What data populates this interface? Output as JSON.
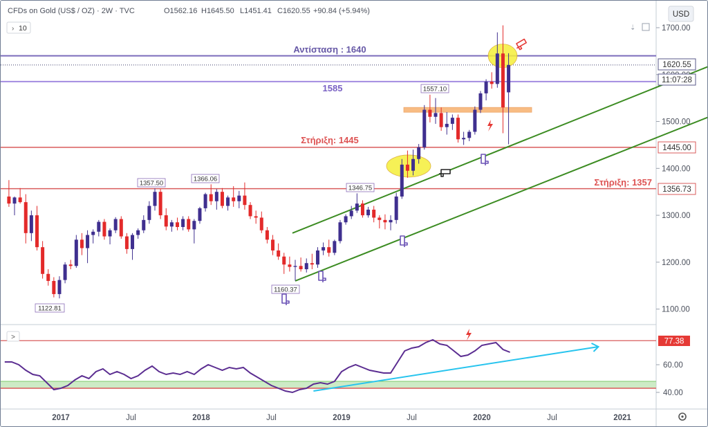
{
  "header": {
    "symbol": "CFDs on Gold (US$ / OZ) · 2W · TVC",
    "ohlc_open": "O1562.16",
    "ohlc_high": "H1645.50",
    "ohlc_low": "L1451.41",
    "ohlc_close": "C1620.55",
    "change": "+90.84 (+5.94%)",
    "interval_button": "10",
    "currency": "USD",
    "indicator_toggle": ">"
  },
  "colors": {
    "up": "#3f2f8f",
    "down": "#e32a2a",
    "channel": "#3c8c22",
    "resistance": "#7b6bbb",
    "support": "#d95b5b",
    "rsi_line": "#5b2d91",
    "rsi_trend": "#27c4ee",
    "highlight": "#f5ef39",
    "zone": "#f6a65a"
  },
  "annotations": {
    "resistance_1640": "Αντίσταση : 1640",
    "level_1585": "1585",
    "support_1445": "Στήριξη: 1445",
    "support_1357": "Στήριξη: 1357",
    "low_label": "1122.81",
    "high_label_2017": "1357.50",
    "high_label_2018": "1366.06",
    "low_label_2018": "1160.37",
    "high_label_2019a": "1346.75",
    "high_label_2019b": "1557.10"
  },
  "price_badges": {
    "last": "1620.55",
    "countdown": "11:07:28",
    "support_1445": "1445.00",
    "support_1357": "1356.73",
    "rsi_level": "77.38"
  },
  "chart_data": {
    "type": "candlestick",
    "title": "CFDs on Gold (US$ / OZ) · 2W · TVC",
    "y_axis": {
      "ticks": [
        1100,
        1200,
        1300,
        1400,
        1500,
        1600,
        1700
      ],
      "tick_labels": [
        "1100.00",
        "1200.00",
        "1300.00",
        "1400.00",
        "1500.00",
        "1600.00",
        "1700.00"
      ],
      "range": [
        1035,
        1780
      ]
    },
    "x_axis": {
      "tick_labels": [
        "2017",
        "Jul",
        "2018",
        "Jul",
        "2019",
        "Jul",
        "2020",
        "Jul",
        "2021"
      ],
      "tick_dates": [
        2017.0,
        2017.5,
        2018.0,
        2018.5,
        2019.0,
        2019.5,
        2020.0,
        2020.5,
        2021.0
      ],
      "range": [
        2016.63,
        2021.5
      ]
    },
    "candles": [
      {
        "t": 2016.63,
        "o": 1340,
        "h": 1375,
        "l": 1318,
        "c": 1325
      },
      {
        "t": 2016.67,
        "o": 1325,
        "h": 1340,
        "l": 1300,
        "c": 1338
      },
      {
        "t": 2016.71,
        "o": 1338,
        "h": 1358,
        "l": 1325,
        "c": 1328
      },
      {
        "t": 2016.75,
        "o": 1328,
        "h": 1345,
        "l": 1240,
        "c": 1262
      },
      {
        "t": 2016.79,
        "o": 1262,
        "h": 1310,
        "l": 1245,
        "c": 1300
      },
      {
        "t": 2016.83,
        "o": 1300,
        "h": 1320,
        "l": 1225,
        "c": 1232
      },
      {
        "t": 2016.87,
        "o": 1232,
        "h": 1245,
        "l": 1165,
        "c": 1175
      },
      {
        "t": 2016.91,
        "o": 1175,
        "h": 1185,
        "l": 1150,
        "c": 1160
      },
      {
        "t": 2016.95,
        "o": 1160,
        "h": 1168,
        "l": 1125,
        "c": 1132
      },
      {
        "t": 2016.99,
        "o": 1132,
        "h": 1170,
        "l": 1122.81,
        "c": 1162
      },
      {
        "t": 2017.03,
        "o": 1162,
        "h": 1200,
        "l": 1155,
        "c": 1195
      },
      {
        "t": 2017.07,
        "o": 1195,
        "h": 1205,
        "l": 1185,
        "c": 1192
      },
      {
        "t": 2017.11,
        "o": 1192,
        "h": 1258,
        "l": 1188,
        "c": 1248
      },
      {
        "t": 2017.15,
        "o": 1248,
        "h": 1262,
        "l": 1215,
        "c": 1230
      },
      {
        "t": 2017.19,
        "o": 1230,
        "h": 1268,
        "l": 1198,
        "c": 1258
      },
      {
        "t": 2017.23,
        "o": 1258,
        "h": 1270,
        "l": 1240,
        "c": 1265
      },
      {
        "t": 2017.27,
        "o": 1265,
        "h": 1290,
        "l": 1255,
        "c": 1286
      },
      {
        "t": 2017.31,
        "o": 1286,
        "h": 1292,
        "l": 1248,
        "c": 1255
      },
      {
        "t": 2017.35,
        "o": 1255,
        "h": 1272,
        "l": 1238,
        "c": 1268
      },
      {
        "t": 2017.39,
        "o": 1268,
        "h": 1296,
        "l": 1262,
        "c": 1292
      },
      {
        "t": 2017.43,
        "o": 1292,
        "h": 1298,
        "l": 1250,
        "c": 1255
      },
      {
        "t": 2017.47,
        "o": 1255,
        "h": 1262,
        "l": 1218,
        "c": 1228
      },
      {
        "t": 2017.51,
        "o": 1228,
        "h": 1262,
        "l": 1205,
        "c": 1258
      },
      {
        "t": 2017.55,
        "o": 1258,
        "h": 1272,
        "l": 1250,
        "c": 1268
      },
      {
        "t": 2017.59,
        "o": 1268,
        "h": 1300,
        "l": 1262,
        "c": 1290
      },
      {
        "t": 2017.63,
        "o": 1290,
        "h": 1330,
        "l": 1282,
        "c": 1320
      },
      {
        "t": 2017.67,
        "o": 1320,
        "h": 1357.5,
        "l": 1310,
        "c": 1350
      },
      {
        "t": 2017.71,
        "o": 1350,
        "h": 1356,
        "l": 1292,
        "c": 1300
      },
      {
        "t": 2017.75,
        "o": 1300,
        "h": 1315,
        "l": 1268,
        "c": 1276
      },
      {
        "t": 2017.79,
        "o": 1276,
        "h": 1290,
        "l": 1265,
        "c": 1285
      },
      {
        "t": 2017.83,
        "o": 1285,
        "h": 1295,
        "l": 1268,
        "c": 1275
      },
      {
        "t": 2017.87,
        "o": 1275,
        "h": 1298,
        "l": 1268,
        "c": 1292
      },
      {
        "t": 2017.91,
        "o": 1292,
        "h": 1298,
        "l": 1265,
        "c": 1270
      },
      {
        "t": 2017.95,
        "o": 1270,
        "h": 1292,
        "l": 1240,
        "c": 1288
      },
      {
        "t": 2017.99,
        "o": 1288,
        "h": 1318,
        "l": 1282,
        "c": 1315
      },
      {
        "t": 2018.03,
        "o": 1315,
        "h": 1348,
        "l": 1308,
        "c": 1345
      },
      {
        "t": 2018.07,
        "o": 1345,
        "h": 1366.06,
        "l": 1322,
        "c": 1330
      },
      {
        "t": 2018.11,
        "o": 1330,
        "h": 1356,
        "l": 1312,
        "c": 1350
      },
      {
        "t": 2018.15,
        "o": 1350,
        "h": 1358,
        "l": 1315,
        "c": 1320
      },
      {
        "t": 2018.19,
        "o": 1320,
        "h": 1342,
        "l": 1310,
        "c": 1338
      },
      {
        "t": 2018.23,
        "o": 1338,
        "h": 1362,
        "l": 1318,
        "c": 1330
      },
      {
        "t": 2018.27,
        "o": 1330,
        "h": 1352,
        "l": 1315,
        "c": 1342
      },
      {
        "t": 2018.31,
        "o": 1342,
        "h": 1370,
        "l": 1312,
        "c": 1322
      },
      {
        "t": 2018.35,
        "o": 1322,
        "h": 1328,
        "l": 1292,
        "c": 1298
      },
      {
        "t": 2018.39,
        "o": 1298,
        "h": 1310,
        "l": 1282,
        "c": 1295
      },
      {
        "t": 2018.43,
        "o": 1295,
        "h": 1308,
        "l": 1262,
        "c": 1268
      },
      {
        "t": 2018.47,
        "o": 1268,
        "h": 1275,
        "l": 1240,
        "c": 1248
      },
      {
        "t": 2018.51,
        "o": 1248,
        "h": 1258,
        "l": 1215,
        "c": 1225
      },
      {
        "t": 2018.55,
        "o": 1225,
        "h": 1240,
        "l": 1205,
        "c": 1212
      },
      {
        "t": 2018.59,
        "o": 1212,
        "h": 1220,
        "l": 1175,
        "c": 1195
      },
      {
        "t": 2018.63,
        "o": 1195,
        "h": 1212,
        "l": 1180,
        "c": 1190
      },
      {
        "t": 2018.67,
        "o": 1190,
        "h": 1205,
        "l": 1160.37,
        "c": 1192
      },
      {
        "t": 2018.71,
        "o": 1192,
        "h": 1210,
        "l": 1180,
        "c": 1185
      },
      {
        "t": 2018.75,
        "o": 1185,
        "h": 1208,
        "l": 1178,
        "c": 1198
      },
      {
        "t": 2018.79,
        "o": 1198,
        "h": 1218,
        "l": 1185,
        "c": 1195
      },
      {
        "t": 2018.83,
        "o": 1195,
        "h": 1232,
        "l": 1188,
        "c": 1225
      },
      {
        "t": 2018.87,
        "o": 1225,
        "h": 1242,
        "l": 1215,
        "c": 1232
      },
      {
        "t": 2018.91,
        "o": 1232,
        "h": 1248,
        "l": 1212,
        "c": 1220
      },
      {
        "t": 2018.95,
        "o": 1220,
        "h": 1248,
        "l": 1215,
        "c": 1245
      },
      {
        "t": 2018.99,
        "o": 1245,
        "h": 1290,
        "l": 1240,
        "c": 1285
      },
      {
        "t": 2019.03,
        "o": 1285,
        "h": 1302,
        "l": 1280,
        "c": 1298
      },
      {
        "t": 2019.07,
        "o": 1298,
        "h": 1320,
        "l": 1292,
        "c": 1310
      },
      {
        "t": 2019.11,
        "o": 1310,
        "h": 1346.75,
        "l": 1305,
        "c": 1325
      },
      {
        "t": 2019.15,
        "o": 1325,
        "h": 1332,
        "l": 1295,
        "c": 1300
      },
      {
        "t": 2019.19,
        "o": 1300,
        "h": 1318,
        "l": 1295,
        "c": 1312
      },
      {
        "t": 2019.23,
        "o": 1312,
        "h": 1320,
        "l": 1285,
        "c": 1295
      },
      {
        "t": 2019.27,
        "o": 1295,
        "h": 1300,
        "l": 1272,
        "c": 1290
      },
      {
        "t": 2019.31,
        "o": 1290,
        "h": 1302,
        "l": 1270,
        "c": 1285
      },
      {
        "t": 2019.35,
        "o": 1285,
        "h": 1300,
        "l": 1268,
        "c": 1290
      },
      {
        "t": 2019.39,
        "o": 1290,
        "h": 1348,
        "l": 1282,
        "c": 1340
      },
      {
        "t": 2019.43,
        "o": 1340,
        "h": 1420,
        "l": 1335,
        "c": 1408
      },
      {
        "t": 2019.47,
        "o": 1408,
        "h": 1438,
        "l": 1380,
        "c": 1395
      },
      {
        "t": 2019.51,
        "o": 1395,
        "h": 1440,
        "l": 1385,
        "c": 1420
      },
      {
        "t": 2019.55,
        "o": 1420,
        "h": 1452,
        "l": 1410,
        "c": 1445
      },
      {
        "t": 2019.59,
        "o": 1445,
        "h": 1535,
        "l": 1440,
        "c": 1525
      },
      {
        "t": 2019.63,
        "o": 1525,
        "h": 1557.1,
        "l": 1498,
        "c": 1510
      },
      {
        "t": 2019.67,
        "o": 1510,
        "h": 1550,
        "l": 1495,
        "c": 1518
      },
      {
        "t": 2019.71,
        "o": 1518,
        "h": 1530,
        "l": 1480,
        "c": 1488
      },
      {
        "t": 2019.75,
        "o": 1488,
        "h": 1520,
        "l": 1472,
        "c": 1495
      },
      {
        "t": 2019.79,
        "o": 1495,
        "h": 1515,
        "l": 1482,
        "c": 1508
      },
      {
        "t": 2019.83,
        "o": 1508,
        "h": 1515,
        "l": 1455,
        "c": 1462
      },
      {
        "t": 2019.87,
        "o": 1462,
        "h": 1478,
        "l": 1450,
        "c": 1465
      },
      {
        "t": 2019.91,
        "o": 1465,
        "h": 1482,
        "l": 1458,
        "c": 1478
      },
      {
        "t": 2019.95,
        "o": 1478,
        "h": 1532,
        "l": 1472,
        "c": 1525
      },
      {
        "t": 2019.99,
        "o": 1525,
        "h": 1565,
        "l": 1518,
        "c": 1560
      },
      {
        "t": 2020.03,
        "o": 1560,
        "h": 1590,
        "l": 1545,
        "c": 1585
      },
      {
        "t": 2020.07,
        "o": 1585,
        "h": 1605,
        "l": 1570,
        "c": 1580
      },
      {
        "t": 2020.11,
        "o": 1580,
        "h": 1690,
        "l": 1572,
        "c": 1645
      },
      {
        "t": 2020.15,
        "o": 1645,
        "h": 1705,
        "l": 1475,
        "c": 1530
      },
      {
        "t": 2020.19,
        "o": 1562.16,
        "h": 1645.5,
        "l": 1451.41,
        "c": 1620.55
      }
    ],
    "resistance_lines": [
      1640,
      1585
    ],
    "support_lines": [
      1445,
      1356.73
    ],
    "channel": {
      "upper": [
        [
          2018.65,
          1262
        ],
        [
          2021.72,
          1630
        ]
      ],
      "lower": [
        [
          2018.67,
          1160
        ],
        [
          2021.72,
          1522
        ]
      ]
    },
    "rsi": {
      "ticks": [
        40,
        60
      ],
      "tick_labels": [
        "40.00",
        "60.00"
      ],
      "overbought_level": 77.38,
      "band": [
        43,
        48
      ],
      "values": [
        [
          2016.6,
          62
        ],
        [
          2016.65,
          62
        ],
        [
          2016.7,
          60
        ],
        [
          2016.75,
          56
        ],
        [
          2016.8,
          53
        ],
        [
          2016.85,
          52
        ],
        [
          2016.9,
          47
        ],
        [
          2016.95,
          42
        ],
        [
          2017.0,
          43
        ],
        [
          2017.05,
          45
        ],
        [
          2017.1,
          49
        ],
        [
          2017.15,
          52
        ],
        [
          2017.2,
          50
        ],
        [
          2017.25,
          55
        ],
        [
          2017.3,
          57
        ],
        [
          2017.35,
          53
        ],
        [
          2017.4,
          55
        ],
        [
          2017.45,
          53
        ],
        [
          2017.5,
          50
        ],
        [
          2017.55,
          52
        ],
        [
          2017.6,
          56
        ],
        [
          2017.65,
          59
        ],
        [
          2017.7,
          55
        ],
        [
          2017.75,
          53
        ],
        [
          2017.8,
          54
        ],
        [
          2017.85,
          53
        ],
        [
          2017.9,
          55
        ],
        [
          2017.95,
          53
        ],
        [
          2018.0,
          57
        ],
        [
          2018.05,
          60
        ],
        [
          2018.1,
          58
        ],
        [
          2018.15,
          56
        ],
        [
          2018.2,
          58
        ],
        [
          2018.25,
          57
        ],
        [
          2018.3,
          58
        ],
        [
          2018.35,
          54
        ],
        [
          2018.4,
          51
        ],
        [
          2018.45,
          48
        ],
        [
          2018.5,
          45
        ],
        [
          2018.55,
          43
        ],
        [
          2018.6,
          41
        ],
        [
          2018.65,
          40
        ],
        [
          2018.7,
          42
        ],
        [
          2018.75,
          43
        ],
        [
          2018.8,
          46
        ],
        [
          2018.85,
          47
        ],
        [
          2018.9,
          46
        ],
        [
          2018.95,
          48
        ],
        [
          2019.0,
          55
        ],
        [
          2019.05,
          58
        ],
        [
          2019.1,
          60
        ],
        [
          2019.15,
          58
        ],
        [
          2019.2,
          56
        ],
        [
          2019.25,
          55
        ],
        [
          2019.3,
          54
        ],
        [
          2019.35,
          54
        ],
        [
          2019.4,
          62
        ],
        [
          2019.45,
          70
        ],
        [
          2019.5,
          72
        ],
        [
          2019.55,
          73
        ],
        [
          2019.6,
          76
        ],
        [
          2019.65,
          78
        ],
        [
          2019.7,
          75
        ],
        [
          2019.75,
          74
        ],
        [
          2019.8,
          70
        ],
        [
          2019.85,
          66
        ],
        [
          2019.9,
          67
        ],
        [
          2019.95,
          70
        ],
        [
          2020.0,
          74
        ],
        [
          2020.05,
          75
        ],
        [
          2020.1,
          76
        ],
        [
          2020.15,
          71
        ],
        [
          2020.2,
          69
        ]
      ],
      "trendline": [
        [
          2018.8,
          41
        ],
        [
          2020.83,
          73
        ]
      ]
    }
  }
}
